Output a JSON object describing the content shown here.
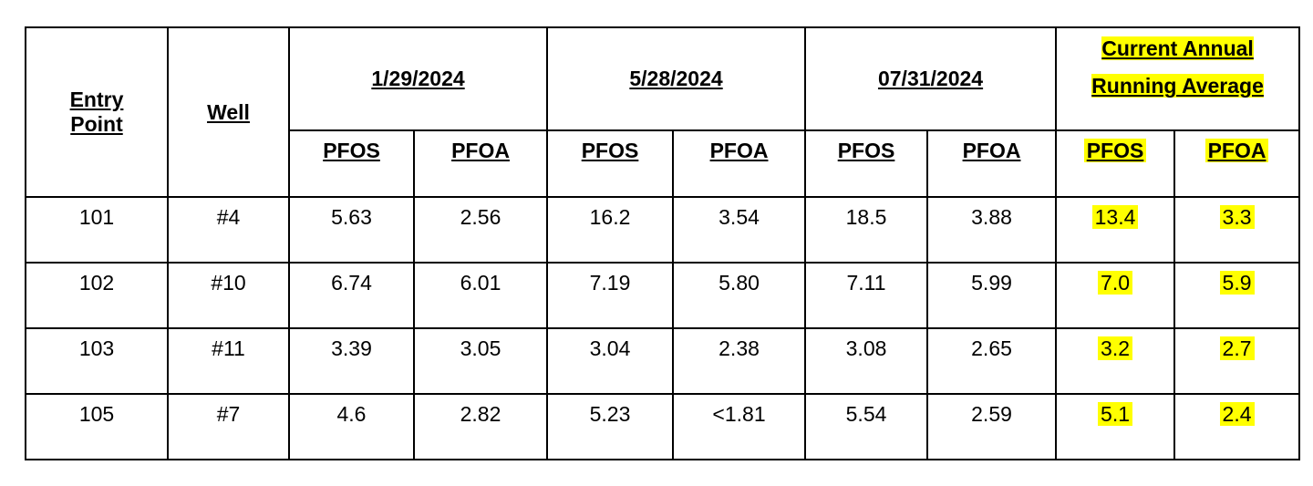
{
  "table": {
    "header": {
      "entry_point": "Entry Point",
      "well": "Well",
      "dates": [
        "1/29/2024",
        "5/28/2024",
        "07/31/2024"
      ],
      "average": "Current Annual Running Average",
      "subheaders": [
        "PFOS",
        "PFOA",
        "PFOS",
        "PFOA",
        "PFOS",
        "PFOA",
        "PFOS",
        "PFOA"
      ]
    },
    "rows": [
      [
        "101",
        "#4",
        "5.63",
        "2.56",
        "16.2",
        "3.54",
        "18.5",
        "3.88",
        "13.4",
        "3.3"
      ],
      [
        "102",
        "#10",
        "6.74",
        "6.01",
        "7.19",
        "5.80",
        "7.11",
        "5.99",
        "7.0",
        "5.9"
      ],
      [
        "103",
        "#11",
        "3.39",
        "3.05",
        "3.04",
        "2.38",
        "3.08",
        "2.65",
        "3.2",
        "2.7"
      ],
      [
        "105",
        "#7",
        "4.6",
        "2.82",
        "5.23",
        "<1.81",
        "5.54",
        "2.59",
        "5.1",
        "2.4"
      ]
    ]
  }
}
